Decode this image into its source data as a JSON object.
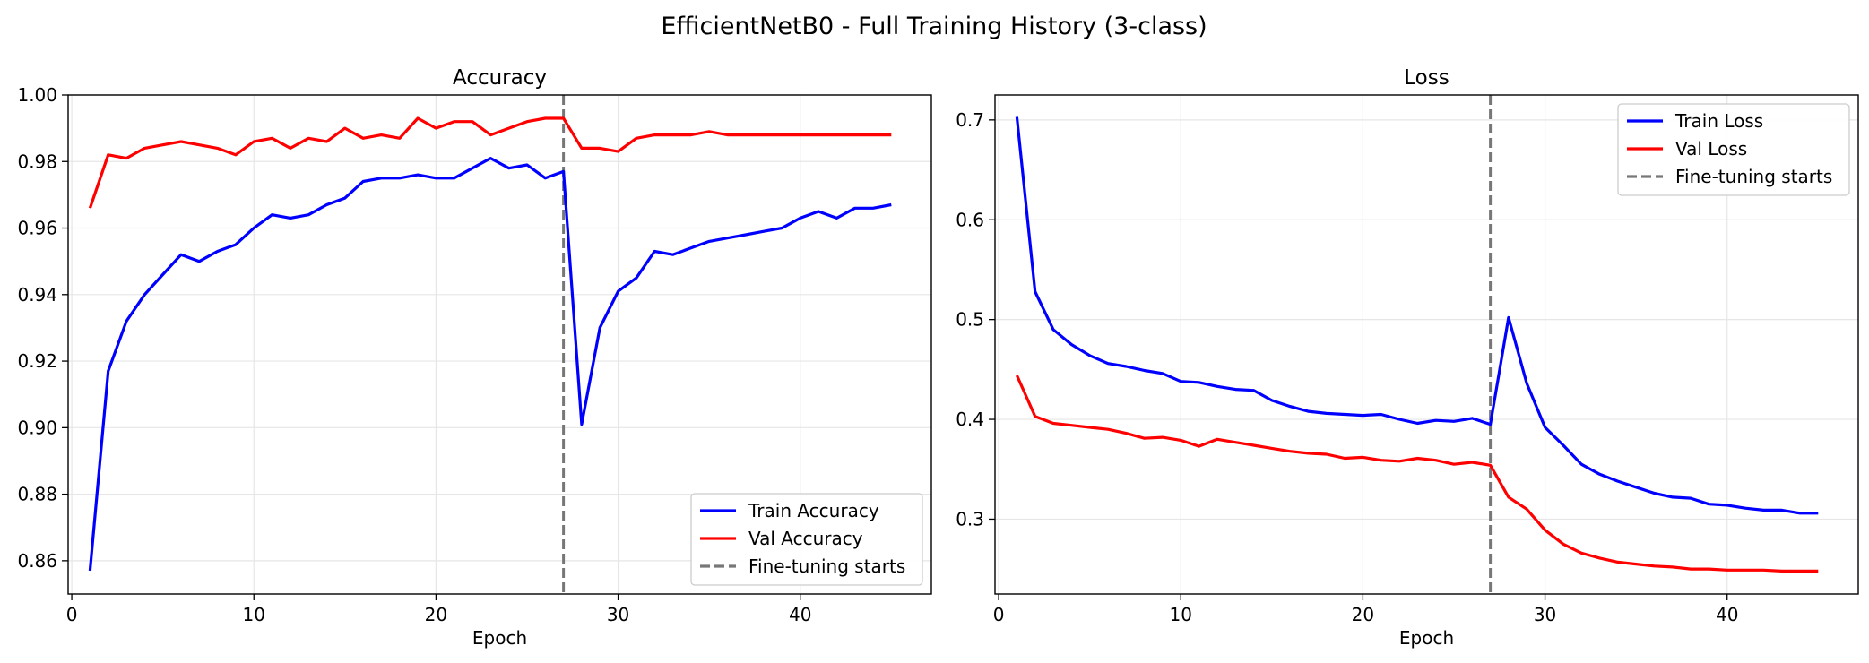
{
  "suptitle": "EfficientNetB0 - Full Training History (3-class)",
  "chart_data": [
    {
      "type": "line",
      "title": "Accuracy",
      "xlabel": "Epoch",
      "ylabel": "",
      "xlim": [
        -0.2,
        47.2
      ],
      "ylim": [
        0.85,
        1.0
      ],
      "xticks": [
        0,
        10,
        20,
        30,
        40
      ],
      "yticks": [
        0.86,
        0.88,
        0.9,
        0.92,
        0.94,
        0.96,
        0.98,
        1.0
      ],
      "xtick_labels": [
        "0",
        "10",
        "20",
        "30",
        "40"
      ],
      "ytick_labels": [
        "0.86",
        "0.88",
        "0.90",
        "0.92",
        "0.94",
        "0.96",
        "0.98",
        "1.00"
      ],
      "grid": true,
      "legend_position": "lower-right",
      "x": [
        1,
        2,
        3,
        4,
        5,
        6,
        7,
        8,
        9,
        10,
        11,
        12,
        13,
        14,
        15,
        16,
        17,
        18,
        19,
        20,
        21,
        22,
        23,
        24,
        25,
        26,
        27,
        28,
        29,
        30,
        31,
        32,
        33,
        34,
        35,
        36,
        37,
        38,
        39,
        40,
        41,
        42,
        43,
        44,
        45
      ],
      "series": [
        {
          "name": "Train Accuracy",
          "color": "#0000ff",
          "values": [
            0.857,
            0.917,
            0.932,
            0.94,
            0.946,
            0.952,
            0.95,
            0.953,
            0.955,
            0.96,
            0.964,
            0.963,
            0.964,
            0.967,
            0.969,
            0.974,
            0.975,
            0.975,
            0.976,
            0.975,
            0.975,
            0.978,
            0.981,
            0.978,
            0.979,
            0.975,
            0.977,
            0.901,
            0.93,
            0.941,
            0.945,
            0.953,
            0.952,
            0.954,
            0.956,
            0.957,
            0.958,
            0.959,
            0.96,
            0.963,
            0.965,
            0.963,
            0.966,
            0.966,
            0.967
          ]
        },
        {
          "name": "Val Accuracy",
          "color": "#ff0000",
          "values": [
            0.966,
            0.982,
            0.981,
            0.984,
            0.985,
            0.986,
            0.985,
            0.984,
            0.982,
            0.986,
            0.987,
            0.984,
            0.987,
            0.986,
            0.99,
            0.987,
            0.988,
            0.987,
            0.993,
            0.99,
            0.992,
            0.992,
            0.988,
            0.99,
            0.992,
            0.993,
            0.993,
            0.984,
            0.984,
            0.983,
            0.987,
            0.988,
            0.988,
            0.988,
            0.989,
            0.988,
            0.988,
            0.988,
            0.988,
            0.988,
            0.988,
            0.988,
            0.988,
            0.988,
            0.988
          ]
        }
      ],
      "vline": {
        "x": 27,
        "label": "Fine-tuning starts",
        "color": "#777777"
      }
    },
    {
      "type": "line",
      "title": "Loss",
      "xlabel": "Epoch",
      "ylabel": "",
      "xlim": [
        -0.2,
        47.2
      ],
      "ylim": [
        0.225,
        0.725
      ],
      "xticks": [
        0,
        10,
        20,
        30,
        40
      ],
      "yticks": [
        0.3,
        0.4,
        0.5,
        0.6,
        0.7
      ],
      "xtick_labels": [
        "0",
        "10",
        "20",
        "30",
        "40"
      ],
      "ytick_labels": [
        "0.3",
        "0.4",
        "0.5",
        "0.6",
        "0.7"
      ],
      "grid": true,
      "legend_position": "upper-right",
      "x": [
        1,
        2,
        3,
        4,
        5,
        6,
        7,
        8,
        9,
        10,
        11,
        12,
        13,
        14,
        15,
        16,
        17,
        18,
        19,
        20,
        21,
        22,
        23,
        24,
        25,
        26,
        27,
        28,
        29,
        30,
        31,
        32,
        33,
        34,
        35,
        36,
        37,
        38,
        39,
        40,
        41,
        42,
        43,
        44,
        45
      ],
      "series": [
        {
          "name": "Train Loss",
          "color": "#0000ff",
          "values": [
            0.703,
            0.528,
            0.49,
            0.475,
            0.464,
            0.456,
            0.453,
            0.449,
            0.446,
            0.438,
            0.437,
            0.433,
            0.43,
            0.429,
            0.419,
            0.413,
            0.408,
            0.406,
            0.405,
            0.404,
            0.405,
            0.4,
            0.396,
            0.399,
            0.398,
            0.401,
            0.395,
            0.502,
            0.436,
            0.392,
            0.374,
            0.355,
            0.345,
            0.338,
            0.332,
            0.326,
            0.322,
            0.321,
            0.315,
            0.314,
            0.311,
            0.309,
            0.309,
            0.306,
            0.306
          ]
        },
        {
          "name": "Val Loss",
          "color": "#ff0000",
          "values": [
            0.444,
            0.403,
            0.396,
            0.394,
            0.392,
            0.39,
            0.386,
            0.381,
            0.382,
            0.379,
            0.373,
            0.38,
            0.377,
            0.374,
            0.371,
            0.368,
            0.366,
            0.365,
            0.361,
            0.362,
            0.359,
            0.358,
            0.361,
            0.359,
            0.355,
            0.357,
            0.354,
            0.322,
            0.31,
            0.289,
            0.275,
            0.266,
            0.261,
            0.257,
            0.255,
            0.253,
            0.252,
            0.25,
            0.25,
            0.249,
            0.249,
            0.249,
            0.248,
            0.248,
            0.248
          ]
        }
      ],
      "vline": {
        "x": 27,
        "label": "Fine-tuning starts",
        "color": "#777777"
      }
    }
  ]
}
